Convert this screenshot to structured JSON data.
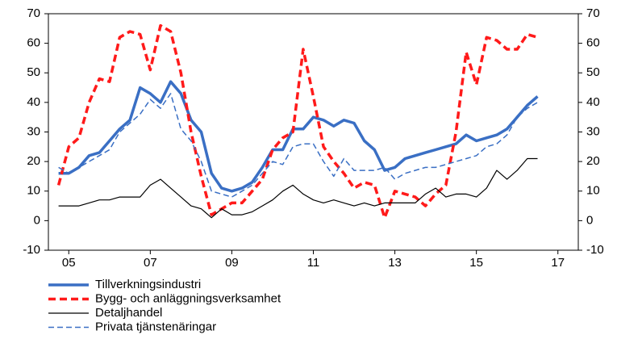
{
  "chart_data": {
    "type": "line",
    "x": [
      4.75,
      5,
      5.25,
      5.5,
      5.75,
      6,
      6.25,
      6.5,
      6.75,
      7,
      7.25,
      7.5,
      7.75,
      8,
      8.25,
      8.5,
      8.75,
      9,
      9.25,
      9.5,
      9.75,
      10,
      10.25,
      10.5,
      10.75,
      11,
      11.25,
      11.5,
      11.75,
      12,
      12.25,
      12.5,
      12.75,
      13,
      13.25,
      13.5,
      13.75,
      14,
      14.25,
      14.5,
      14.75,
      15,
      15.25,
      15.5,
      15.75,
      16,
      16.25,
      16.5
    ],
    "xlim": [
      4.5,
      17.5
    ],
    "xticks": [
      {
        "value": 5,
        "label": "05"
      },
      {
        "value": 7,
        "label": "07"
      },
      {
        "value": 9,
        "label": "09"
      },
      {
        "value": 11,
        "label": "11"
      },
      {
        "value": 13,
        "label": "13"
      },
      {
        "value": 15,
        "label": "15"
      },
      {
        "value": 17,
        "label": "17"
      }
    ],
    "ylim": [
      -10,
      70
    ],
    "yticks": [
      -10,
      0,
      10,
      20,
      30,
      40,
      50,
      60,
      70
    ],
    "y2lim": [
      -10,
      70
    ],
    "y2ticks": [
      -10,
      0,
      10,
      20,
      30,
      40,
      50,
      60,
      70
    ],
    "series": [
      {
        "name": "Tillverkningsindustri",
        "color": "#3a6fc4",
        "dash": "solid",
        "width": 3.5,
        "values": [
          16,
          16,
          18,
          22,
          23,
          27,
          31,
          34,
          45,
          43,
          40,
          47,
          43,
          34,
          30,
          16,
          11,
          10,
          11,
          13,
          18,
          24,
          24,
          31,
          31,
          35,
          34,
          32,
          34,
          33,
          27,
          24,
          17,
          18,
          21,
          22,
          23,
          24,
          25,
          26,
          29,
          27,
          28,
          29,
          31,
          35,
          39,
          42
        ]
      },
      {
        "name": "Bygg- och anläggningsverksamhet",
        "color": "#ff1a1a",
        "dash": "dashed",
        "width": 3.5,
        "values": [
          12,
          25,
          28,
          40,
          48,
          47,
          62,
          64,
          63,
          51,
          66,
          64,
          50,
          30,
          15,
          2,
          4,
          6,
          6,
          10,
          14,
          24,
          28,
          30,
          58,
          42,
          25,
          20,
          16,
          11,
          13,
          12,
          1,
          10,
          9,
          8,
          5,
          9,
          12,
          30,
          57,
          46,
          62,
          61,
          58,
          58,
          63,
          62
        ]
      },
      {
        "name": "Detaljhandel",
        "color": "#000000",
        "dash": "solid",
        "width": 1.2,
        "values": [
          5,
          5,
          5,
          6,
          7,
          7,
          8,
          8,
          8,
          12,
          14,
          11,
          8,
          5,
          4,
          1,
          4,
          2,
          2,
          3,
          5,
          7,
          10,
          12,
          9,
          7,
          6,
          7,
          6,
          5,
          6,
          5,
          6,
          6,
          6,
          6,
          9,
          11,
          8,
          9,
          9,
          8,
          11,
          17,
          14,
          17,
          21,
          21
        ]
      },
      {
        "name": "Privata tjänstenäringar",
        "color": "#3a6fc4",
        "dash": "dashed",
        "width": 1.5,
        "values": [
          18,
          16,
          18,
          20,
          22,
          24,
          30,
          33,
          36,
          41,
          38,
          43,
          31,
          27,
          20,
          10,
          9,
          8,
          10,
          12,
          16,
          20,
          19,
          25,
          26,
          26,
          20,
          15,
          21,
          17,
          17,
          17,
          18,
          14,
          16,
          17,
          18,
          18,
          19,
          20,
          21,
          22,
          25,
          26,
          29,
          35,
          38,
          40
        ]
      }
    ]
  }
}
